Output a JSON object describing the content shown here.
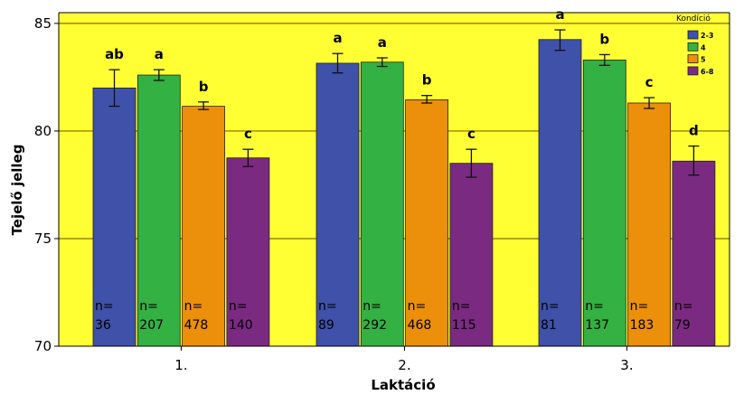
{
  "chart_data": {
    "type": "bar",
    "xlabel": "Laktáció",
    "ylabel": "Tejelő jelleg",
    "ylim": [
      70,
      85.5
    ],
    "yticks": [
      70,
      75,
      80,
      85
    ],
    "grid": true,
    "categories": [
      "1.",
      "2.",
      "3."
    ],
    "legend": {
      "title": "Kondíció",
      "placement": "top-right",
      "items": [
        "2-3",
        "4",
        "5",
        "6-8"
      ]
    },
    "colors": {
      "2-3": "#3f51a8",
      "4": "#33b143",
      "5": "#ec8f0a",
      "6-8": "#7b2a82",
      "plot_background": "#ffff33",
      "gridline": "#8a6a00"
    },
    "series": [
      {
        "name": "2-3",
        "values": [
          82.0,
          83.15,
          84.25
        ],
        "err_low": [
          81.15,
          82.7,
          83.75
        ],
        "err_high": [
          82.85,
          83.6,
          84.7
        ],
        "letters": [
          "ab",
          "a",
          "a"
        ],
        "n_labels": [
          "n=\n36",
          "n=\n89",
          "n=\n81"
        ]
      },
      {
        "name": "4",
        "values": [
          82.6,
          83.2,
          83.3
        ],
        "err_low": [
          82.35,
          83.0,
          83.05
        ],
        "err_high": [
          82.85,
          83.4,
          83.55
        ],
        "letters": [
          "a",
          "a",
          "b"
        ],
        "n_labels": [
          "n=\n207",
          "n=\n292",
          "n=\n137"
        ]
      },
      {
        "name": "5",
        "values": [
          81.15,
          81.45,
          81.3
        ],
        "err_low": [
          81.0,
          81.3,
          81.05
        ],
        "err_high": [
          81.35,
          81.65,
          81.55
        ],
        "letters": [
          "b",
          "b",
          "c"
        ],
        "n_labels": [
          "n=\n478",
          "n=\n468",
          "n=\n183"
        ]
      },
      {
        "name": "6-8",
        "values": [
          78.75,
          78.5,
          78.6
        ],
        "err_low": [
          78.35,
          77.85,
          77.95
        ],
        "err_high": [
          79.15,
          79.15,
          79.3
        ],
        "letters": [
          "c",
          "c",
          "d"
        ],
        "n_labels": [
          "n=\n140",
          "n=\n115",
          "n=\n79"
        ]
      }
    ]
  }
}
